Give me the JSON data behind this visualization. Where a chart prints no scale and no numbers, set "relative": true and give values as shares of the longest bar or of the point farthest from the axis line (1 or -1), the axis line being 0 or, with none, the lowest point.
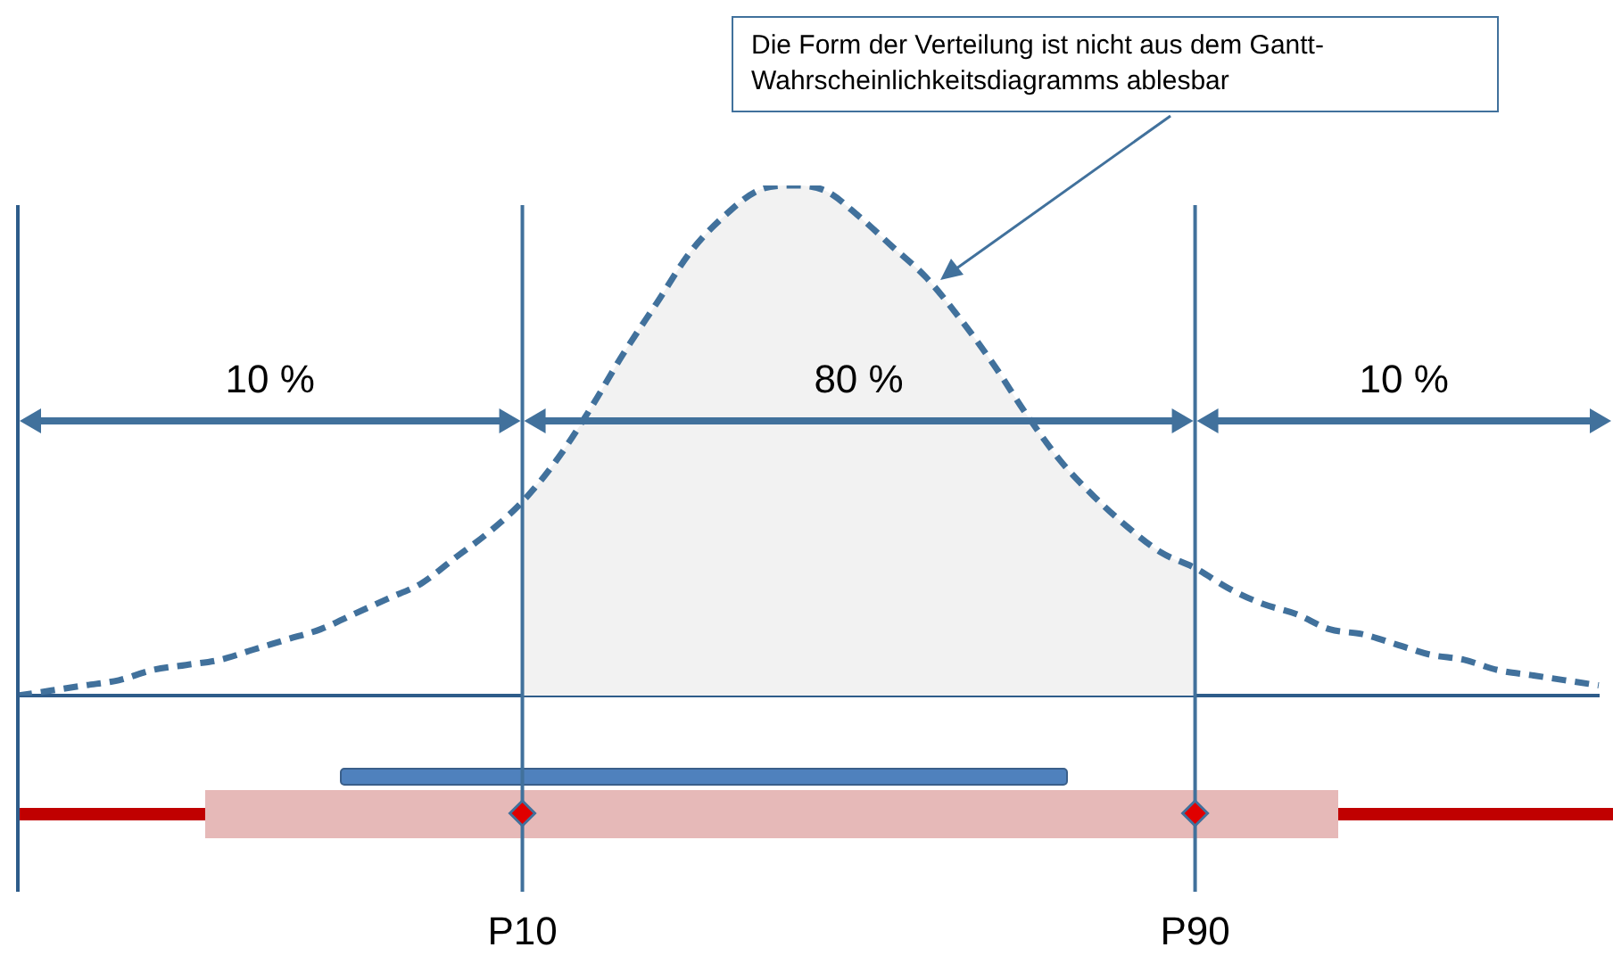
{
  "chart_data": {
    "type": "line",
    "relative": true,
    "categories": [
      null,
      null,
      null,
      null,
      null,
      null,
      null,
      null,
      null,
      null,
      null,
      null,
      null,
      null,
      null,
      "P10",
      null,
      null,
      null,
      null,
      null,
      null,
      null,
      null,
      null,
      null,
      null,
      null,
      null,
      null,
      null,
      null,
      null,
      null,
      null,
      "P90",
      null,
      null,
      null,
      null,
      null,
      null,
      null,
      null,
      null,
      null,
      null,
      null
    ],
    "series": [
      {
        "type": "area",
        "color": "#f2f2f2",
        "values": [
          null,
          null,
          null,
          null,
          null,
          null,
          null,
          null,
          null,
          null,
          null,
          null,
          null,
          null,
          null,
          0.38,
          0.46,
          0.56,
          0.67,
          0.77,
          0.87,
          0.94,
          0.99,
          1,
          0.99,
          0.94,
          0.88,
          0.82,
          0.74,
          0.65,
          0.55,
          0.46,
          0.39,
          0.33,
          0.28,
          0.25,
          null,
          null,
          null,
          null,
          null,
          null,
          null,
          null,
          null,
          null,
          null,
          null
        ]
      },
      {
        "color": "#41719c",
        "line_style": "dashed",
        "marker": "none",
        "values": [
          0,
          0.01,
          0.02,
          0.03,
          0.05,
          0.06,
          0.07,
          0.09,
          0.11,
          0.13,
          0.16,
          0.19,
          0.22,
          0.27,
          0.32,
          0.38,
          0.46,
          0.56,
          0.67,
          0.77,
          0.87,
          0.94,
          0.99,
          1,
          0.99,
          0.94,
          0.88,
          0.82,
          0.74,
          0.65,
          0.55,
          0.46,
          0.39,
          0.33,
          0.28,
          0.25,
          0.21,
          0.18,
          0.16,
          0.13,
          0.12,
          0.1,
          0.08,
          0.07,
          0.05,
          0.04,
          0.03,
          0.02
        ]
      }
    ],
    "ref_lines": [
      {
        "axis": "x",
        "value": "P10",
        "color": "#41719c"
      },
      {
        "axis": "x",
        "value": "P90",
        "color": "#41719c"
      }
    ],
    "annotations": [
      "10 %",
      "80 %",
      "10 %",
      "Die Form der Verteilung ist nicht aus dem Gantt-Wahrscheinlichkeitsdiagramms ablesbar"
    ],
    "legend": false,
    "grid": false
  }
}
